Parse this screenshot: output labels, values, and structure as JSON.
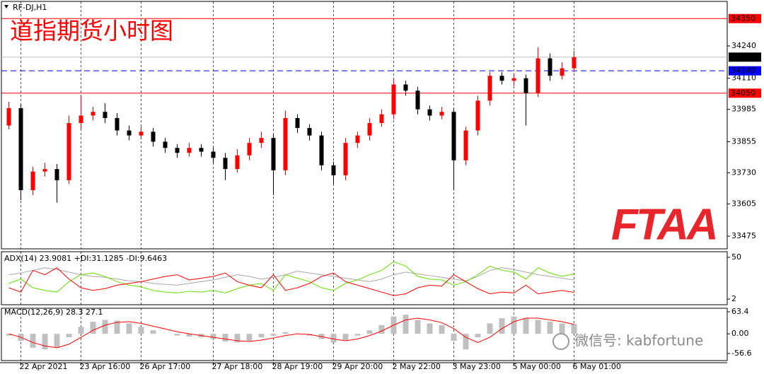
{
  "symbol": "RF-DJ,H1",
  "logo": "FTAA",
  "watermark": "微信号: kabfortune",
  "chart_data": [
    {
      "type": "candlestick",
      "title": "道指期货小时图",
      "up_color": "#ff0000",
      "down_color": "#000000",
      "categories": [
        null,
        "22 Apr 2021",
        null,
        null,
        null,
        null,
        "23 Apr 16:00",
        null,
        null,
        null,
        null,
        "26 Apr 17:00",
        null,
        null,
        null,
        null,
        null,
        "27 Apr 18:00",
        null,
        null,
        null,
        null,
        "28 Apr 19:00",
        null,
        null,
        null,
        null,
        "29 Apr 20:00",
        null,
        null,
        null,
        null,
        "2 May 22:00",
        null,
        null,
        null,
        null,
        "3 May 23:00",
        null,
        null,
        null,
        null,
        "5 May 00:00",
        null,
        null,
        null,
        null,
        "6 May 01:00"
      ],
      "open": [
        33920,
        33990,
        33660,
        33735,
        33745,
        33700,
        33930,
        33960,
        33975,
        33950,
        33900,
        33880,
        33895,
        33855,
        33830,
        33810,
        33830,
        33815,
        33790,
        33745,
        33800,
        33850,
        33870,
        33740,
        33950,
        33910,
        33880,
        33760,
        33720,
        33850,
        33880,
        33930,
        33965,
        34085,
        34060,
        33985,
        33960,
        33975,
        33780,
        33900,
        34020,
        34120,
        34100,
        34110,
        34050,
        34190,
        34120,
        34150
      ],
      "high": [
        34015,
        34005,
        33755,
        33770,
        33765,
        33960,
        34040,
        33995,
        34010,
        33970,
        33920,
        33915,
        33910,
        33870,
        33845,
        33850,
        33845,
        33830,
        33810,
        33825,
        33870,
        33895,
        33885,
        33980,
        33965,
        33925,
        33895,
        33775,
        33870,
        33895,
        33950,
        33985,
        34110,
        34100,
        34075,
        34000,
        33995,
        33990,
        33915,
        34040,
        34135,
        34135,
        34130,
        34125,
        34235,
        34210,
        34175,
        34220
      ],
      "low": [
        33905,
        33620,
        33640,
        33715,
        33610,
        33685,
        33905,
        33940,
        33930,
        33880,
        33860,
        33865,
        33835,
        33810,
        33790,
        33795,
        33795,
        33770,
        33700,
        33730,
        33780,
        33830,
        33640,
        33720,
        33890,
        33860,
        33740,
        33685,
        33700,
        33830,
        33860,
        33915,
        33945,
        34040,
        33965,
        33940,
        33945,
        33660,
        33760,
        33880,
        34000,
        34085,
        34080,
        33920,
        34035,
        34100,
        34105,
        34135
      ],
      "close": [
        33990,
        33660,
        33735,
        33745,
        33700,
        33930,
        33960,
        33975,
        33950,
        33900,
        33880,
        33895,
        33855,
        33830,
        33810,
        33830,
        33815,
        33790,
        33745,
        33800,
        33850,
        33870,
        33740,
        33950,
        33910,
        33880,
        33760,
        33720,
        33850,
        33880,
        33930,
        33965,
        34085,
        34060,
        33985,
        33960,
        33975,
        33780,
        33900,
        34020,
        34120,
        34100,
        34110,
        34050,
        34190,
        34120,
        34150,
        34195
      ],
      "ylim": [
        33424,
        34419
      ],
      "yticks": [
        33475,
        33605,
        33730,
        33855,
        33985,
        34110,
        34240
      ],
      "hlines": [
        {
          "value": 34350,
          "color": "#ff0000",
          "box": "#ff0000",
          "dashed": false
        },
        {
          "value": 34195,
          "color": "#c0c0c0",
          "box": "#000000",
          "dashed": false
        },
        {
          "value": 34140,
          "color": "#0000ff",
          "box": "#0000ff",
          "dashed": true
        },
        {
          "value": 34050,
          "color": "#ff0000",
          "box": "#ff0000",
          "dashed": false
        }
      ],
      "grid": true
    },
    {
      "type": "line",
      "title": "ADX(14) 23.9081 +DI:31.1285 -DI:9.6463",
      "ylim": [
        -4.5,
        56.5
      ],
      "yticks": [
        2,
        50
      ],
      "series": [
        {
          "color": "#a8a8a8",
          "values": [
            30,
            32,
            35,
            38,
            36,
            33,
            30,
            28,
            27,
            25,
            23,
            22,
            20,
            19,
            18,
            20,
            22,
            24,
            27,
            30,
            28,
            25,
            27,
            30,
            34,
            32,
            30,
            28,
            26,
            24,
            22,
            25,
            30,
            33,
            31,
            29,
            27,
            25,
            23,
            28,
            35,
            38,
            36,
            33,
            30,
            28,
            26,
            24
          ]
        },
        {
          "color": "#66dd00",
          "values": [
            20,
            25,
            15,
            12,
            10,
            22,
            30,
            32,
            28,
            22,
            18,
            16,
            12,
            10,
            9,
            11,
            10,
            12,
            9,
            14,
            18,
            20,
            12,
            30,
            26,
            22,
            15,
            12,
            20,
            24,
            30,
            35,
            45,
            40,
            28,
            25,
            24,
            18,
            22,
            30,
            40,
            35,
            33,
            25,
            38,
            32,
            28,
            31
          ]
        },
        {
          "color": "#ff0000",
          "values": [
            15,
            10,
            35,
            30,
            38,
            25,
            15,
            12,
            14,
            18,
            20,
            22,
            25,
            28,
            30,
            24,
            26,
            28,
            32,
            22,
            18,
            15,
            30,
            12,
            15,
            20,
            28,
            32,
            22,
            18,
            14,
            10,
            6,
            8,
            15,
            18,
            17,
            30,
            22,
            14,
            8,
            10,
            9,
            18,
            8,
            10,
            12,
            9.6
          ]
        }
      ]
    },
    {
      "type": "macd",
      "title": "MACD(12,26,9) 28.3 27.1",
      "ylim": [
        -77,
        73.6
      ],
      "yticks": [
        -56.6,
        {
          "value": 0,
          "label": "0.00"
        },
        63.4
      ],
      "hist_color": "#c0c0c0",
      "signal_color": "#ff0000",
      "values": [
        -5,
        -20,
        -40,
        -45,
        -40,
        -10,
        20,
        35,
        40,
        38,
        30,
        20,
        10,
        0,
        -5,
        -8,
        -10,
        -15,
        -22,
        -25,
        -20,
        -10,
        -5,
        5,
        0,
        -5,
        -15,
        -25,
        -18,
        -5,
        10,
        25,
        50,
        55,
        40,
        30,
        25,
        -20,
        -45,
        -10,
        30,
        45,
        50,
        45,
        40,
        35,
        30,
        28.3
      ],
      "signal": [
        0,
        -10,
        -25,
        -35,
        -40,
        -30,
        -10,
        10,
        25,
        33,
        35,
        30,
        22,
        14,
        6,
        0,
        -5,
        -10,
        -15,
        -20,
        -22,
        -18,
        -12,
        -5,
        0,
        -2,
        -8,
        -15,
        -20,
        -15,
        -5,
        8,
        25,
        40,
        45,
        40,
        32,
        15,
        -10,
        -25,
        -10,
        15,
        35,
        45,
        45,
        40,
        35,
        27.1
      ]
    }
  ]
}
